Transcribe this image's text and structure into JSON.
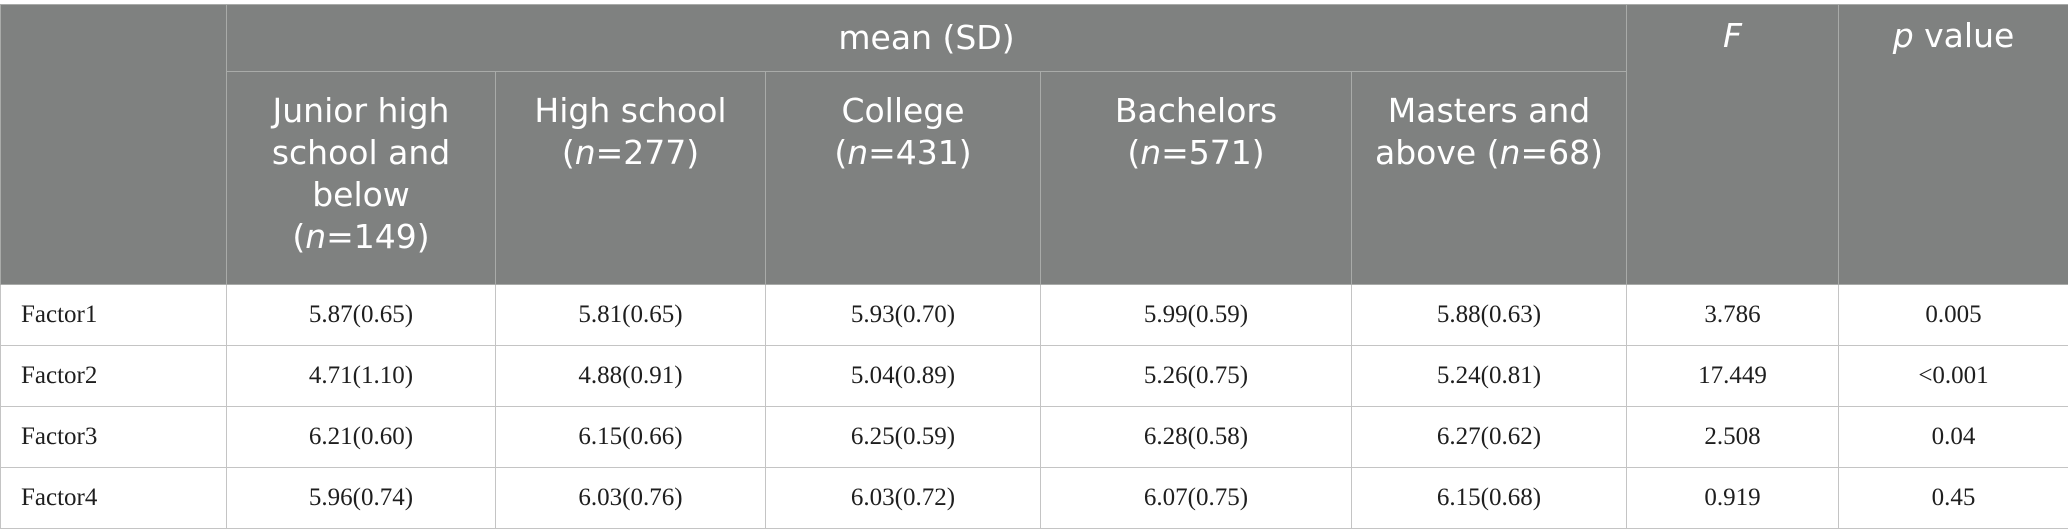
{
  "header": {
    "group_label": "mean (SD)",
    "f_label": "F",
    "p_label_italic": "p",
    "p_label_rest": " value",
    "columns": [
      {
        "line1": "Junior high",
        "line2": "school and",
        "line3": "below",
        "n_prefix": "(",
        "n_var": "n",
        "n_value": "=149)"
      },
      {
        "line1": "High school",
        "n_prefix": "(",
        "n_var": "n",
        "n_value": "=277)"
      },
      {
        "line1": "College",
        "n_prefix": "(",
        "n_var": "n",
        "n_value": "=431)"
      },
      {
        "line1": "Bachelors",
        "n_prefix": "(",
        "n_var": "n",
        "n_value": "=571)"
      },
      {
        "line1": "Masters and",
        "line2a": "above (",
        "n_var": "n",
        "n_value": "=68)"
      }
    ]
  },
  "rows": [
    {
      "label": "Factor1",
      "values": [
        "5.87(0.65)",
        "5.81(0.65)",
        "5.93(0.70)",
        "5.99(0.59)",
        "5.88(0.63)"
      ],
      "f": "3.786",
      "p": "0.005"
    },
    {
      "label": "Factor2",
      "values": [
        "4.71(1.10)",
        "4.88(0.91)",
        "5.04(0.89)",
        "5.26(0.75)",
        "5.24(0.81)"
      ],
      "f": "17.449",
      "p": "<0.001"
    },
    {
      "label": "Factor3",
      "values": [
        "6.21(0.60)",
        "6.15(0.66)",
        "6.25(0.59)",
        "6.28(0.58)",
        "6.27(0.62)"
      ],
      "f": "2.508",
      "p": "0.04"
    },
    {
      "label": "Factor4",
      "values": [
        "5.96(0.74)",
        "6.03(0.76)",
        "6.03(0.72)",
        "6.07(0.75)",
        "6.15(0.68)"
      ],
      "f": "0.919",
      "p": "0.45"
    }
  ]
}
